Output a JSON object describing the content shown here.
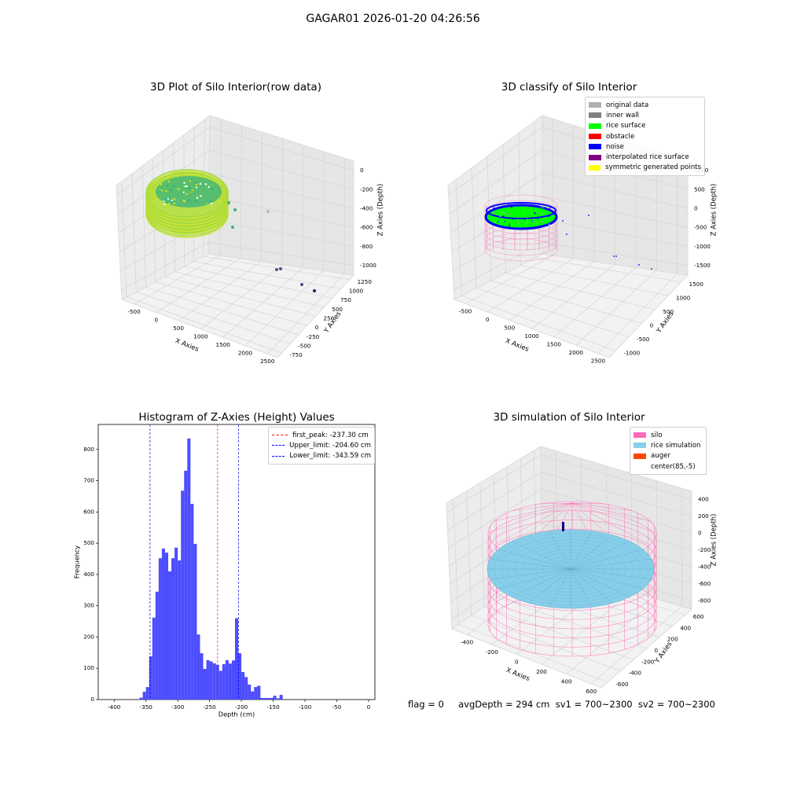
{
  "figure": {
    "suptitle": "GAGAR01 2026-01-20 04:26:56",
    "footer": "flag = 0     avgDepth = 294 cm  sv1 = 700~2300  sv2 = 700~2300"
  },
  "colors": {
    "histogram_bar": "#4d4dff",
    "first_peak_line": "#ff0000",
    "limit_line": "#0000ff",
    "pane_face": "#f2f2f2",
    "silo_mesh": "#ff69b4",
    "rice_simulation": "#87ceeb",
    "auger": "#ff4500",
    "noise_ring": "#0000ff",
    "rice_surface": "#00ff00"
  },
  "chart_data": [
    {
      "type": "scatter",
      "projection": "3d",
      "title": "3D Plot of Silo Interior(row data)",
      "xlabel": "X Axies",
      "ylabel": "Y Axies",
      "zlabel": "Z Axies (Depth)",
      "x_ticks": [
        "-500",
        "0",
        "500",
        "1000",
        "1500",
        "2000",
        "2500"
      ],
      "y_ticks": [
        "-750",
        "-500",
        "-250",
        "0",
        "250",
        "500",
        "750",
        "1000",
        "1250"
      ],
      "z_ticks": [
        "-1000",
        "-800",
        "-600",
        "-400",
        "-200",
        "0"
      ],
      "colormap": "viridis",
      "grid": true
    },
    {
      "type": "scatter",
      "projection": "3d",
      "title": "3D classify of Silo Interior",
      "xlabel": "X Axies",
      "ylabel": "Y Axies",
      "zlabel": "Z Axies (Depth)",
      "x_ticks": [
        "-500",
        "0",
        "500",
        "1000",
        "1500",
        "2000",
        "2500"
      ],
      "y_ticks": [
        "-1000",
        "-500",
        "0",
        "500",
        "1000",
        "1500"
      ],
      "z_ticks": [
        "-1500",
        "-1000",
        "-500",
        "0",
        "500",
        "1000"
      ],
      "legend_position": "top-right",
      "legend": [
        {
          "label": "original data",
          "color": "#b0b0b0"
        },
        {
          "label": "inner wall",
          "color": "#808080"
        },
        {
          "label": "rice surface",
          "color": "#00ff00"
        },
        {
          "label": "obstacle",
          "color": "#ff0000"
        },
        {
          "label": "noise",
          "color": "#0000ff"
        },
        {
          "label": "interpolated rice surface",
          "color": "#800080"
        },
        {
          "label": "symmetric generated points",
          "color": "#ffff00"
        }
      ],
      "grid": true
    },
    {
      "type": "bar",
      "title": "Histogram of Z-Axies (Height) Values",
      "xlabel": "Depth (cm)",
      "ylabel": "Frequency",
      "xlim": [
        -425,
        10
      ],
      "ylim": [
        0,
        880
      ],
      "x_ticks": [
        -400,
        -350,
        -300,
        -250,
        -200,
        -150,
        -100,
        -50,
        0
      ],
      "y_ticks": [
        0,
        100,
        200,
        300,
        400,
        500,
        600,
        700,
        800
      ],
      "bin_width": 5,
      "bins": [
        [
          -360,
          6
        ],
        [
          -355,
          25
        ],
        [
          -350,
          40
        ],
        [
          -345,
          138
        ],
        [
          -340,
          262
        ],
        [
          -335,
          345
        ],
        [
          -330,
          452
        ],
        [
          -325,
          483
        ],
        [
          -320,
          470
        ],
        [
          -315,
          410
        ],
        [
          -310,
          452
        ],
        [
          -305,
          486
        ],
        [
          -300,
          445
        ],
        [
          -295,
          668
        ],
        [
          -290,
          732
        ],
        [
          -285,
          835
        ],
        [
          -280,
          626
        ],
        [
          -275,
          498
        ],
        [
          -270,
          208
        ],
        [
          -265,
          148
        ],
        [
          -260,
          98
        ],
        [
          -255,
          126
        ],
        [
          -250,
          122
        ],
        [
          -245,
          116
        ],
        [
          -240,
          111
        ],
        [
          -235,
          92
        ],
        [
          -230,
          113
        ],
        [
          -225,
          126
        ],
        [
          -220,
          115
        ],
        [
          -215,
          125
        ],
        [
          -210,
          260
        ],
        [
          -205,
          148
        ],
        [
          -200,
          88
        ],
        [
          -195,
          72
        ],
        [
          -190,
          48
        ],
        [
          -185,
          26
        ],
        [
          -180,
          40
        ],
        [
          -175,
          44
        ],
        [
          -170,
          5
        ],
        [
          -165,
          5
        ],
        [
          -160,
          5
        ],
        [
          -155,
          5
        ],
        [
          -150,
          12
        ],
        [
          -145,
          4
        ],
        [
          -140,
          15
        ]
      ],
      "vlines": [
        {
          "label": "first_peak: -237.30 cm",
          "x": -237.3,
          "color": "#ff0000"
        },
        {
          "label": "Upper_limit: -204.60 cm",
          "x": -204.6,
          "color": "#0000ff"
        },
        {
          "label": "Lower_limit: -343.59 cm",
          "x": -343.59,
          "color": "#0000ff"
        }
      ],
      "legend_position": "top-right",
      "grid": false
    },
    {
      "type": "scatter",
      "projection": "3d",
      "title": "3D simulation of Silo Interior",
      "xlabel": "X Axies",
      "ylabel": "Y Axies",
      "zlabel": "Z Axies (Depth)",
      "x_ticks": [
        "-400",
        "-200",
        "0",
        "200",
        "400",
        "600"
      ],
      "y_ticks": [
        "-600",
        "-400",
        "-200",
        "0",
        "200",
        "400",
        "600"
      ],
      "z_ticks": [
        "-800",
        "-600",
        "-400",
        "-200",
        "0",
        "200",
        "400"
      ],
      "legend_position": "top-right",
      "legend": [
        {
          "label": "silo",
          "color": "#ff69b4"
        },
        {
          "label": "rice simulation",
          "color": "#87ceeb"
        },
        {
          "label": "auger",
          "color": "#ff4500"
        },
        {
          "label": "center(85,-5)",
          "color": "#ffffff"
        }
      ],
      "grid": true
    }
  ]
}
